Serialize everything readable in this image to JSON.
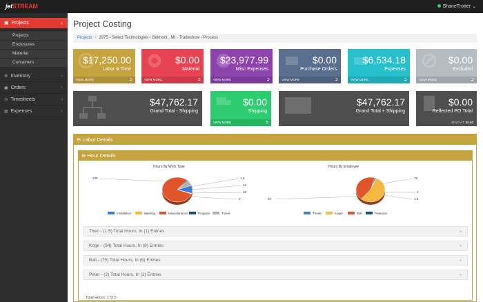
{
  "app": {
    "logo_part1": "jet",
    "logo_part2": "STREAM",
    "user_name": "ShaneTrotter",
    "user_chevron": "⌄"
  },
  "sidebar": {
    "active": {
      "label": "Projects",
      "icon": "briefcase-icon"
    },
    "sub_items": [
      "Projects",
      "Enclosures",
      "Material",
      "Containers"
    ],
    "items": [
      {
        "label": "Inventory",
        "icon": "gear-icon"
      },
      {
        "label": "Orders",
        "icon": "cart-icon"
      },
      {
        "label": "Timesheets",
        "icon": "clock-icon"
      },
      {
        "label": "Expenses",
        "icon": "money-icon"
      }
    ]
  },
  "page": {
    "title": "Project Costing",
    "breadcrumb_root": "Projects",
    "breadcrumb_current": "2975 - Select Technologies - Belmont , MI - Tradeshow - Process"
  },
  "cards_row1": [
    {
      "amount": "$17,250.00",
      "label": "Labor & Time",
      "foot": "VIEW MORE",
      "color": "#c5a440"
    },
    {
      "amount": "$0.00",
      "label": "Material",
      "foot": "VIEW MORE",
      "color": "#e84352"
    },
    {
      "amount": "$23,977.99",
      "label": "Misc Expenses",
      "foot": "VIEW MORE",
      "color": "#8e44ad"
    },
    {
      "amount": "$0.00",
      "label": "Purchase Orders",
      "foot": "VIEW MORE",
      "color": "#5a6e8e"
    },
    {
      "amount": "$6,534.18",
      "label": "Expenses",
      "foot": "VIEW MORE",
      "color": "#26c0cc"
    },
    {
      "amount": "$0.00",
      "label": "Excluded",
      "foot": "VIEW MORE",
      "color": "#b5bcc2"
    }
  ],
  "cards_row2": [
    {
      "amount": "$47,762.17",
      "label": "Grand Total - Shipping",
      "color": "#4e4e4e"
    },
    {
      "amount": "$0.00",
      "label": "Shipping",
      "foot": "VIEW MORE",
      "color": "#2ecc71"
    },
    {
      "amount": "$47,762.17",
      "label": "Grand Total + Shipping",
      "color": "#4e4e4e"
    },
    {
      "amount": "$0.00",
      "label": "Reflected PO Total",
      "sold_label": "SOLD AT:",
      "sold_value": "$0.00",
      "color": "#4e4e4e"
    }
  ],
  "labor": {
    "title": "Labor Details",
    "hour_title": "Hour Details",
    "total_hours": "Total Hours: 172.5",
    "employees": [
      "Theo    - (1.5) Total Hours, In (1) Entries",
      "Koge    - (94) Total Hours, In (8) Entries",
      "Ball - (75) Total Hours, In (6) Entries",
      "Peter   - (2) Total Hours, In (1) Entries"
    ]
  },
  "chart_data": [
    {
      "type": "pie",
      "title": "Hours By Work Type",
      "categories": [
        "Installation",
        "Meeting",
        "Miscellaneous",
        "Program",
        "Travel"
      ],
      "values": [
        18,
        1.5,
        139,
        2,
        12
      ],
      "colors": [
        "#3b7dd8",
        "#f5b942",
        "#e0552b",
        "#1f4e79",
        "#b0b0b0"
      ],
      "data_labels": [
        "139",
        "1.5",
        "12",
        "18",
        "2"
      ]
    },
    {
      "type": "pie",
      "title": "Hours By Employee",
      "categories": [
        "Thede",
        "Koger",
        "Ball",
        "Peterson"
      ],
      "values": [
        1.5,
        94,
        75,
        2
      ],
      "colors": [
        "#3b7dd8",
        "#f5b942",
        "#e0552b",
        "#1f4e79"
      ],
      "data_labels": [
        "75",
        "94",
        "2",
        "1.5"
      ]
    }
  ]
}
